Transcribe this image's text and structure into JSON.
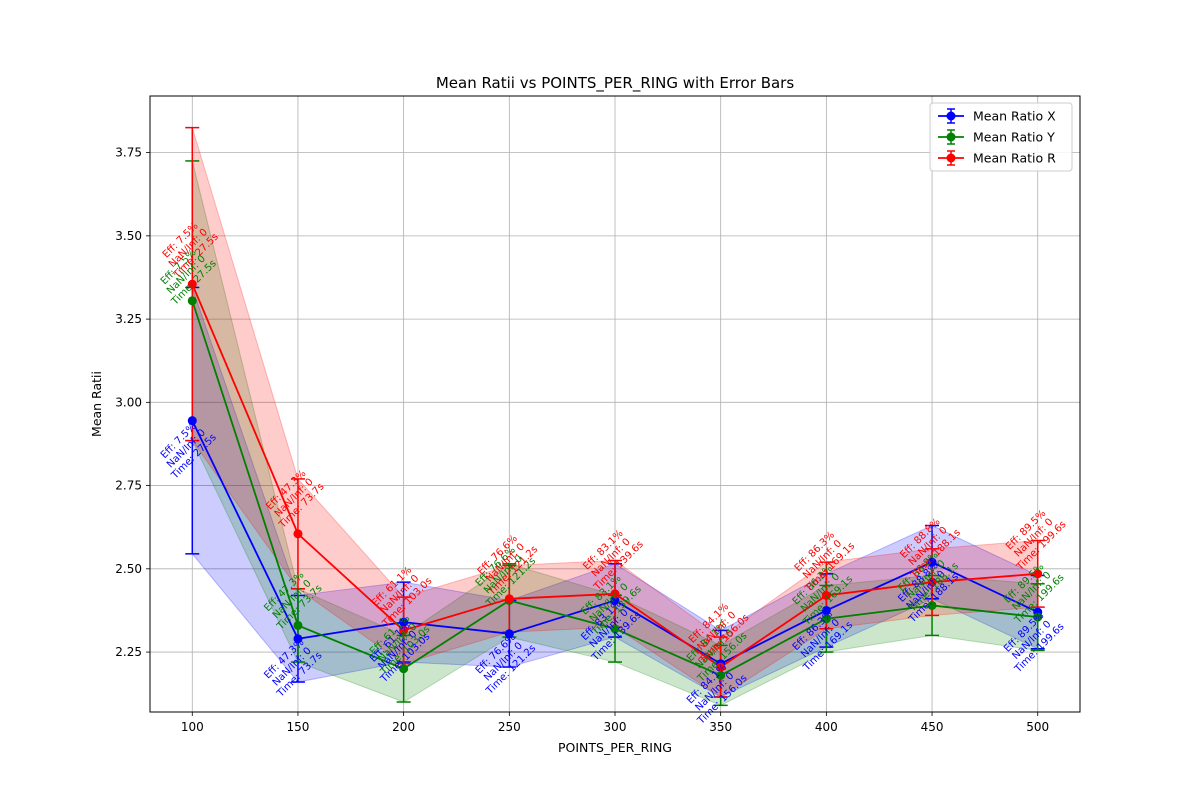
{
  "chart_data": {
    "type": "line",
    "title": "Mean Ratii vs POINTS_PER_RING with Error Bars",
    "xlabel": "POINTS_PER_RING",
    "ylabel": "Mean Ratii",
    "x": [
      100,
      150,
      200,
      250,
      300,
      350,
      400,
      450,
      500
    ],
    "xlim": [
      80,
      520
    ],
    "ylim": [
      2.07,
      3.92
    ],
    "xticks": [
      "100",
      "150",
      "200",
      "250",
      "300",
      "350",
      "400",
      "450",
      "500"
    ],
    "yticks": [
      "2.25",
      "2.50",
      "2.75",
      "3.00",
      "3.25",
      "3.50",
      "3.75"
    ],
    "grid": true,
    "legend_position": "top-right",
    "series": [
      {
        "name": "Mean Ratio X",
        "color": "#0000ff",
        "values": [
          2.945,
          2.29,
          2.34,
          2.305,
          2.405,
          2.215,
          2.375,
          2.52,
          2.37
        ],
        "errors": [
          0.4,
          0.13,
          0.12,
          0.1,
          0.11,
          0.1,
          0.11,
          0.11,
          0.11
        ],
        "annotations": [
          [
            "Eff: 7.5%",
            "NaN/Inf: 0",
            "Time: 27.5s"
          ],
          [
            "Eff: 47.3%",
            "NaN/Inf: 0",
            "Time: 73.7s"
          ],
          [
            "Eff: 61.1%",
            "NaN/Inf: 0",
            "Time: 103.0s"
          ],
          [
            "Eff: 76.6%",
            "NaN/Inf: 0",
            "Time: 121.2s"
          ],
          [
            "Eff: 83.1%",
            "NaN/Inf: 0",
            "Time: 139.6s"
          ],
          [
            "Eff: 84.1%",
            "NaN/Inf: 0",
            "Time: 156.0s"
          ],
          [
            "Eff: 86.3%",
            "NaN/Inf: 0",
            "Time: 169.1s"
          ],
          [
            "Eff: 88.8%",
            "NaN/Inf: 0",
            "Time: 188.1s"
          ],
          [
            "Eff: 89.5%",
            "NaN/Inf: 0",
            "Time: 199.6s"
          ]
        ]
      },
      {
        "name": "Mean Ratio Y",
        "color": "#008000",
        "values": [
          3.305,
          2.33,
          2.2,
          2.405,
          2.32,
          2.18,
          2.35,
          2.39,
          2.355
        ],
        "errors": [
          0.42,
          0.11,
          0.1,
          0.11,
          0.1,
          0.09,
          0.1,
          0.09,
          0.1
        ],
        "annotations": [
          [
            "Eff: 7.5%",
            "NaN/Inf: 0",
            "Time: 27.5s"
          ],
          [
            "Eff: 47.3%",
            "NaN/Inf: 0",
            "Time: 73.7s"
          ],
          [
            "Eff: 61.1%",
            "NaN/Inf: 0",
            "Time: 103.0s"
          ],
          [
            "Eff: 76.6%",
            "NaN/Inf: 0",
            "Time: 121.2s"
          ],
          [
            "Eff: 83.1%",
            "NaN/Inf: 0",
            "Time: 139.6s"
          ],
          [
            "Eff: 84.1%",
            "NaN/Inf: 0",
            "Time: 156.0s"
          ],
          [
            "Eff: 86.3%",
            "NaN/Inf: 0",
            "Time: 169.1s"
          ],
          [
            "Eff: 88.8%",
            "NaN/Inf: 0",
            "Time: 188.1s"
          ],
          [
            "Eff: 89.5%",
            "NaN/Inf: 0",
            "Time: 199.6s"
          ]
        ]
      },
      {
        "name": "Mean Ratio R",
        "color": "#ff0000",
        "values": [
          3.355,
          2.605,
          2.315,
          2.41,
          2.425,
          2.205,
          2.42,
          2.46,
          2.485
        ],
        "errors": [
          0.47,
          0.165,
          0.1,
          0.1,
          0.1,
          0.09,
          0.1,
          0.1,
          0.1
        ],
        "annotations": [
          [
            "Eff: 7.5%",
            "NaN/Inf: 0",
            "Time: 27.5s"
          ],
          [
            "Eff: 47.3%",
            "NaN/Inf: 0",
            "Time: 73.7s"
          ],
          [
            "Eff: 61.1%",
            "NaN/Inf: 0",
            "Time: 103.0s"
          ],
          [
            "Eff: 76.6%",
            "NaN/Inf: 0",
            "Time: 121.2s"
          ],
          [
            "Eff: 83.1%",
            "NaN/Inf: 0",
            "Time: 139.6s"
          ],
          [
            "Eff: 84.1%",
            "NaN/Inf: 0",
            "Time: 156.0s"
          ],
          [
            "Eff: 86.3%",
            "NaN/Inf: 0",
            "Time: 169.1s"
          ],
          [
            "Eff: 88.8%",
            "NaN/Inf: 0",
            "Time: 188.1s"
          ],
          [
            "Eff: 89.5%",
            "NaN/Inf: 0",
            "Time: 199.6s"
          ]
        ]
      }
    ]
  }
}
